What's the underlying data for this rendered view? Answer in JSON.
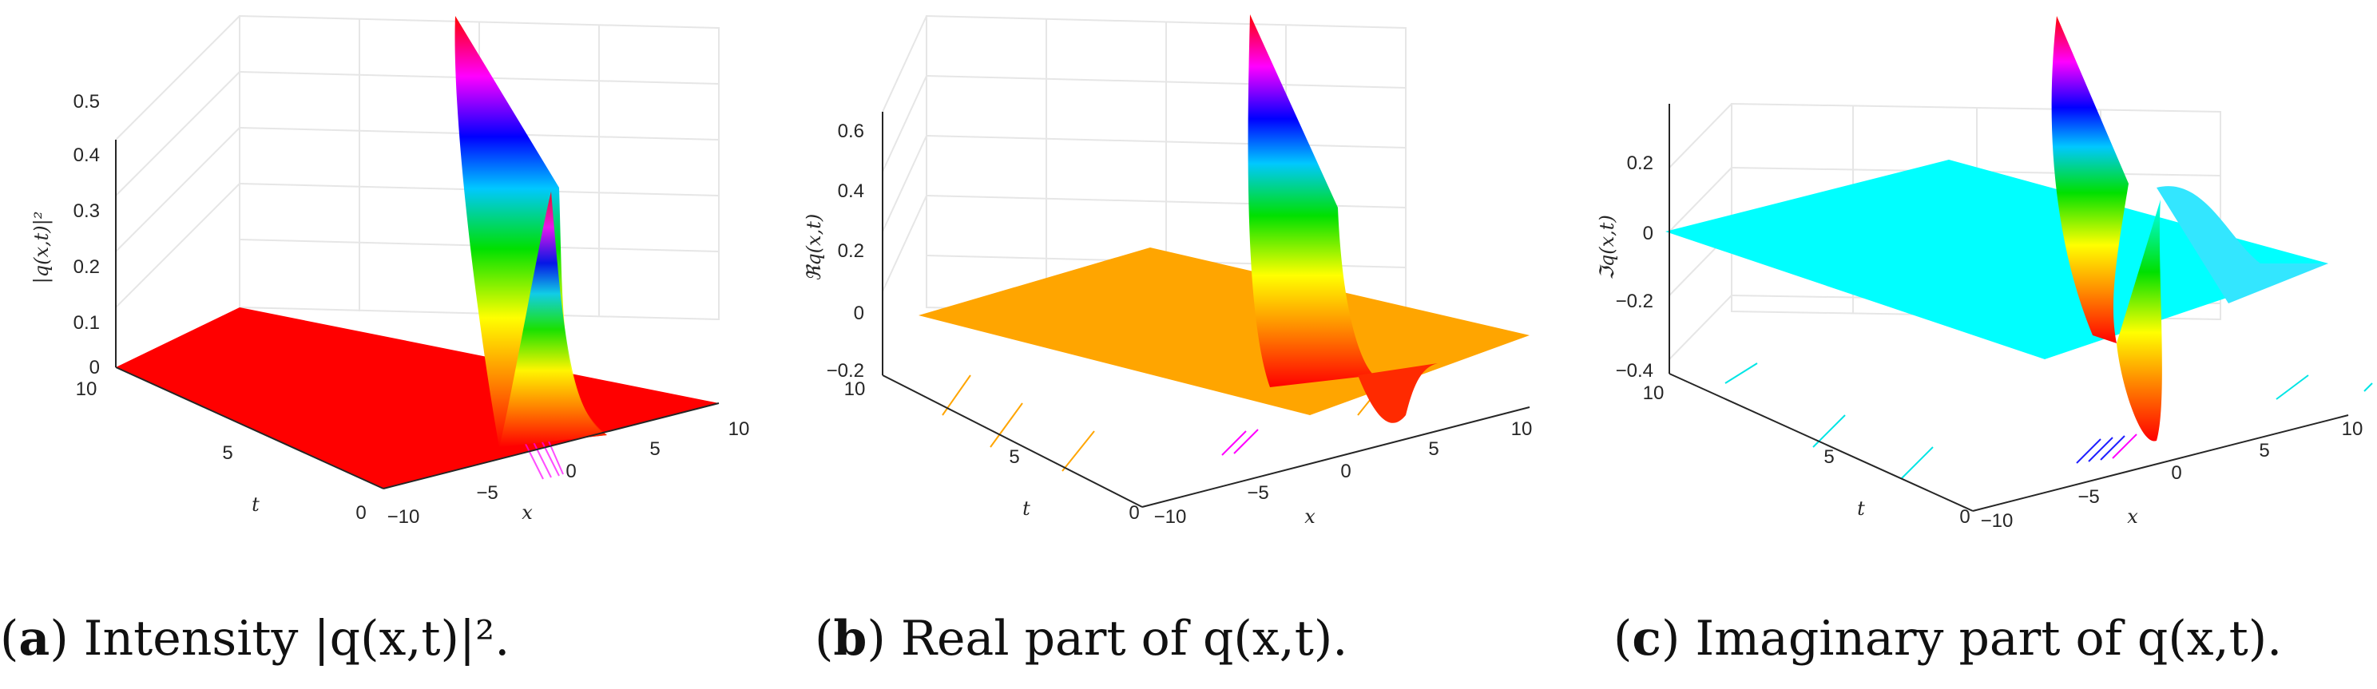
{
  "chart_data": [
    {
      "type": "surface3d",
      "caption_letter": "a",
      "caption_text": "Intensity |q(x,t)|².",
      "zlabel": "|q(x,t)|²",
      "xlabel": "x",
      "ylabel": "t",
      "xlim": [
        -10,
        10
      ],
      "tlim": [
        0,
        10
      ],
      "zlim": [
        0,
        0.5
      ],
      "x_ticks": [
        "−10",
        "−5",
        "0",
        "5",
        "10"
      ],
      "t_ticks": [
        "0",
        "5",
        "10"
      ],
      "z_ticks": [
        "0",
        "0.1",
        "0.2",
        "0.3",
        "0.4",
        "0.5"
      ],
      "floor_value": 0,
      "peak": 0.5,
      "trough": 0
    },
    {
      "type": "surface3d",
      "caption_letter": "b",
      "caption_text": "Real part of q(x,t).",
      "zlabel": "ℜq(x,t)",
      "xlabel": "x",
      "ylabel": "t",
      "xlim": [
        -10,
        10
      ],
      "tlim": [
        0,
        10
      ],
      "zlim": [
        -0.2,
        0.7
      ],
      "x_ticks": [
        "−10",
        "−5",
        "0",
        "5",
        "10"
      ],
      "t_ticks": [
        "0",
        "5",
        "10"
      ],
      "z_ticks": [
        "−0.2",
        "0",
        "0.2",
        "0.4",
        "0.6"
      ],
      "floor_value": 0,
      "peak": 0.7,
      "trough": -0.2
    },
    {
      "type": "surface3d",
      "caption_letter": "c",
      "caption_text": "Imaginary part of q(x,t).",
      "zlabel": "ℑq(x,t)",
      "xlabel": "x",
      "ylabel": "t",
      "xlim": [
        -10,
        10
      ],
      "tlim": [
        0,
        10
      ],
      "zlim": [
        -0.4,
        0.35
      ],
      "x_ticks": [
        "−10",
        "−5",
        "0",
        "5",
        "10"
      ],
      "t_ticks": [
        "0",
        "5",
        "10"
      ],
      "z_ticks": [
        "−0.4",
        "−0.2",
        "0",
        "0.2"
      ],
      "floor_value": 0,
      "peak": 0.35,
      "trough": -0.4
    }
  ],
  "colors": {
    "a_floor": "#ff0000",
    "b_floor": "#ffa500",
    "c_floor": "#00ffff",
    "grid": "#e6e6e6",
    "axis": "#262626"
  }
}
